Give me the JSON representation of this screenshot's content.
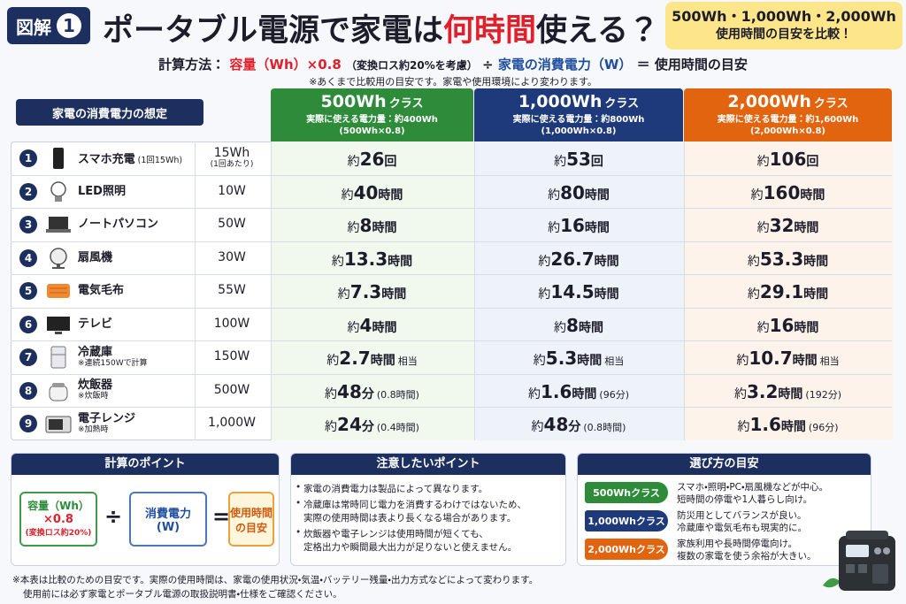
{
  "header": {
    "badge_label": "図解",
    "badge_number": "1",
    "title_parts": [
      "ポータブル電源で家電は",
      "何時間",
      "使える？"
    ],
    "callout": [
      "500Wh・1,000Wh・2,000Wh",
      "使用時間の目安を比較！"
    ]
  },
  "formula": {
    "label": "計算方法：",
    "capacity": "容量（Wh）×0.8",
    "loss": "（変換ロス約20%を考慮）",
    "divide": "÷",
    "power": "家電の消費電力（W）",
    "result": "＝ 使用時間の目安",
    "note": "※あくまで比較用の目安です。家電や使用環境により変わります。"
  },
  "table": {
    "header_label": "家電の消費電力の想定",
    "columns": [
      {
        "title": "500Wh",
        "suffix": "クラス",
        "sub": [
          "実際に使える電力量：約400Wh",
          "(500Wh×0.8)"
        ]
      },
      {
        "title": "1,000Wh",
        "suffix": "クラス",
        "sub": [
          "実際に使える電力量：約800Wh",
          "(1,000Wh×0.8)"
        ]
      },
      {
        "title": "2,000Wh",
        "suffix": "クラス",
        "sub": [
          "実際に使える電力量：約1,600Wh",
          "(2,000Wh×0.8)"
        ]
      }
    ],
    "rows": [
      {
        "num": "1",
        "name": "スマホ充電",
        "name_note": "(1回15Wh)",
        "power": "15Wh",
        "power_note": "(1回あたり)",
        "cells": [
          {
            "pre": "約",
            "num": "26",
            "unit": "回"
          },
          {
            "pre": "約",
            "num": "53",
            "unit": "回"
          },
          {
            "pre": "約",
            "num": "106",
            "unit": "回"
          }
        ]
      },
      {
        "num": "2",
        "name": "LED照明",
        "power": "10W",
        "cells": [
          {
            "pre": "約",
            "num": "40",
            "unit": "時間"
          },
          {
            "pre": "約",
            "num": "80",
            "unit": "時間"
          },
          {
            "pre": "約",
            "num": "160",
            "unit": "時間"
          }
        ]
      },
      {
        "num": "3",
        "name": "ノートパソコン",
        "power": "50W",
        "cells": [
          {
            "pre": "約",
            "num": "8",
            "unit": "時間"
          },
          {
            "pre": "約",
            "num": "16",
            "unit": "時間"
          },
          {
            "pre": "約",
            "num": "32",
            "unit": "時間"
          }
        ]
      },
      {
        "num": "4",
        "name": "扇風機",
        "power": "30W",
        "cells": [
          {
            "pre": "約",
            "num": "13.3",
            "unit": "時間"
          },
          {
            "pre": "約",
            "num": "26.7",
            "unit": "時間"
          },
          {
            "pre": "約",
            "num": "53.3",
            "unit": "時間"
          }
        ]
      },
      {
        "num": "5",
        "name": "電気毛布",
        "power": "55W",
        "cells": [
          {
            "pre": "約",
            "num": "7.3",
            "unit": "時間"
          },
          {
            "pre": "約",
            "num": "14.5",
            "unit": "時間"
          },
          {
            "pre": "約",
            "num": "29.1",
            "unit": "時間"
          }
        ]
      },
      {
        "num": "6",
        "name": "テレビ",
        "power": "100W",
        "cells": [
          {
            "pre": "約",
            "num": "4",
            "unit": "時間"
          },
          {
            "pre": "約",
            "num": "8",
            "unit": "時間"
          },
          {
            "pre": "約",
            "num": "16",
            "unit": "時間"
          }
        ]
      },
      {
        "num": "7",
        "name": "冷蔵庫",
        "name_note": "※連続150Wで計算",
        "power": "150W",
        "cells": [
          {
            "pre": "約",
            "num": "2.7",
            "unit": "時間",
            "extra": "相当"
          },
          {
            "pre": "約",
            "num": "5.3",
            "unit": "時間",
            "extra": "相当"
          },
          {
            "pre": "約",
            "num": "10.7",
            "unit": "時間",
            "extra": "相当"
          }
        ]
      },
      {
        "num": "8",
        "name": "炊飯器",
        "name_note": "※炊飯時",
        "power": "500W",
        "cells": [
          {
            "pre": "約",
            "num": "48",
            "unit": "分",
            "extra": "(0.8時間)"
          },
          {
            "pre": "約",
            "num": "1.6",
            "unit": "時間",
            "extra": "(96分)"
          },
          {
            "pre": "約",
            "num": "3.2",
            "unit": "時間",
            "extra": "(192分)"
          }
        ]
      },
      {
        "num": "9",
        "name": "電子レンジ",
        "name_note": "※加熱時",
        "power": "1,000W",
        "cells": [
          {
            "pre": "約",
            "num": "24",
            "unit": "分",
            "extra": "(0.4時間)"
          },
          {
            "pre": "約",
            "num": "48",
            "unit": "分",
            "extra": "(0.8時間)"
          },
          {
            "pre": "約",
            "num": "1.6",
            "unit": "時間",
            "extra": "(96分)"
          }
        ]
      }
    ]
  },
  "panels": {
    "calc": {
      "title": "計算のポイント",
      "capacity": [
        "容量（Wh）",
        "×0.8",
        "(変換ロス約20%)"
      ],
      "divide": "÷",
      "power": [
        "消費電力",
        "(W)"
      ],
      "equals": "=",
      "result": [
        "使用時間",
        "の目安"
      ]
    },
    "caution": {
      "title": "注意したいポイント",
      "items": [
        [
          "家電の消費電力は製品によって異なります。"
        ],
        [
          "冷蔵庫は常時同じ電力を消費するわけではないため、",
          "実際の使用時間は表より長くなる場合があります。"
        ],
        [
          "炊飯器や電子レンジは使用時間が短くても、",
          "定格出力や瞬間最大出力が足りないと使えません。"
        ]
      ]
    },
    "choose": {
      "title": "選び方の目安",
      "items": [
        {
          "tag": "500Whクラス",
          "lines": [
            "スマホ・照明・PC・扇風機などが中心。",
            "短時間の停電や1人暮らし向け。"
          ]
        },
        {
          "tag": "1,000Whクラス",
          "lines": [
            "防災用としてバランスが良い。",
            "冷蔵庫や電気毛布も現実的に。"
          ]
        },
        {
          "tag": "2,000Whクラス",
          "lines": [
            "家族利用や長時間停電向け。",
            "複数の家電を使う余裕が大きい。"
          ]
        }
      ]
    }
  },
  "footer": [
    "※本表は比較のための目安です。実際の使用時間は、家電の使用状況・気温・バッテリー残量・出力方式などによって変わります。",
    "使用前には必ず家電とポータブル電源の取扱説明書・仕様をご確認ください。"
  ]
}
